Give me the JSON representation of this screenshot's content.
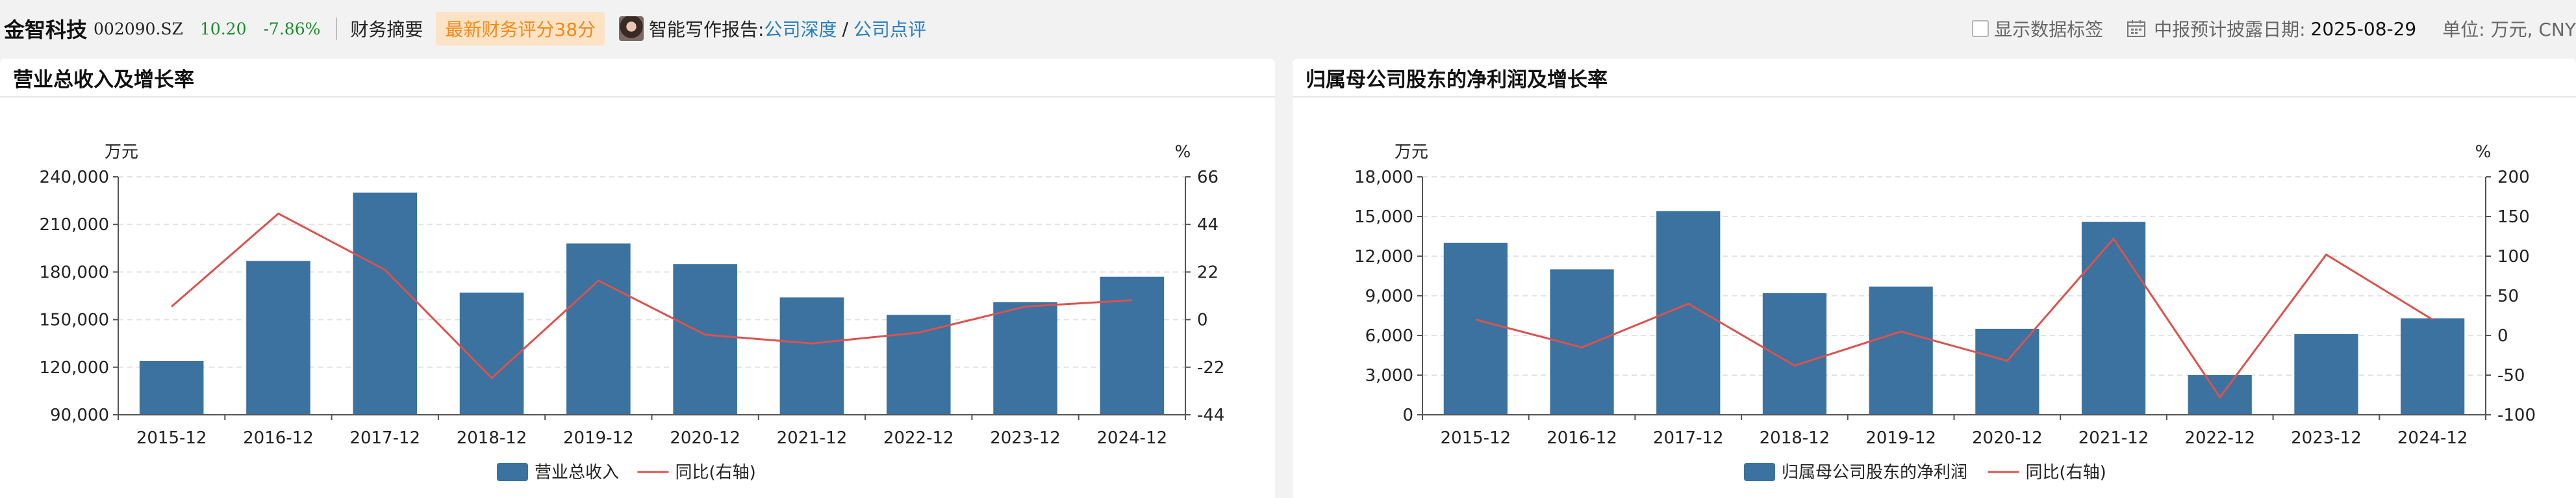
{
  "header": {
    "stock_name": "金智科技",
    "stock_code": "002090.SZ",
    "price": "10.20",
    "change": "-7.86%",
    "summary_tab": "财务摘要",
    "score_badge": "最新财务评分38分",
    "ai_report_label": "智能写作报告:",
    "link_deep": "公司深度",
    "link_separator": "/",
    "link_review": "公司点评",
    "show_labels": "显示数据标签",
    "disclosure_label": "中报预计披露日期:",
    "disclosure_date": "2025-08-29",
    "unit": "单位: 万元, CNY"
  },
  "colors": {
    "bar": "#3b729f",
    "line": "#d9534f",
    "price_down": "#1c8a2b",
    "link": "#2b7fbd"
  },
  "chart_data": [
    {
      "type": "bar",
      "title": "营业总收入及增长率",
      "categories": [
        "2015-12",
        "2016-12",
        "2017-12",
        "2018-12",
        "2019-12",
        "2020-12",
        "2021-12",
        "2022-12",
        "2023-12",
        "2024-12"
      ],
      "series": [
        {
          "name": "营业总收入",
          "type": "bar",
          "axis": "left",
          "values": [
            124000,
            187000,
            230000,
            167000,
            198000,
            185000,
            164000,
            153000,
            161000,
            177000
          ]
        },
        {
          "name": "同比(右轴)",
          "type": "line",
          "axis": "right",
          "values": [
            6,
            49,
            23,
            -27,
            18,
            -7,
            -11,
            -6,
            6,
            9
          ]
        }
      ],
      "y_left": {
        "unit": "万元",
        "min": 90000,
        "max": 240000,
        "ticks": [
          90000,
          120000,
          150000,
          180000,
          210000,
          240000
        ],
        "tick_labels": [
          "90,000",
          "120,000",
          "150,000",
          "180,000",
          "210,000",
          "240,000"
        ]
      },
      "y_right": {
        "unit": "%",
        "min": -44,
        "max": 66,
        "ticks": [
          -44,
          -22,
          0,
          22,
          44,
          66
        ],
        "tick_labels": [
          "-44",
          "-22",
          "0",
          "22",
          "44",
          "66"
        ]
      },
      "grid": true,
      "legend": "bottom"
    },
    {
      "type": "bar",
      "title": "归属母公司股东的净利润及增长率",
      "categories": [
        "2015-12",
        "2016-12",
        "2017-12",
        "2018-12",
        "2019-12",
        "2020-12",
        "2021-12",
        "2022-12",
        "2023-12",
        "2024-12"
      ],
      "series": [
        {
          "name": "归属母公司股东的净利润",
          "type": "bar",
          "axis": "left",
          "values": [
            13000,
            11000,
            15400,
            9200,
            9700,
            6500,
            14600,
            3000,
            6100,
            7300
          ]
        },
        {
          "name": "同比(右轴)",
          "type": "line",
          "axis": "right",
          "values": [
            20,
            -15,
            40,
            -38,
            5,
            -32,
            122,
            -78,
            102,
            20
          ]
        }
      ],
      "y_left": {
        "unit": "万元",
        "min": 0,
        "max": 18000,
        "ticks": [
          0,
          3000,
          6000,
          9000,
          12000,
          15000,
          18000
        ],
        "tick_labels": [
          "0",
          "3,000",
          "6,000",
          "9,000",
          "12,000",
          "15,000",
          "18,000"
        ]
      },
      "y_right": {
        "unit": "%",
        "min": -100,
        "max": 200,
        "ticks": [
          -100,
          -50,
          0,
          50,
          100,
          150,
          200
        ],
        "tick_labels": [
          "-100",
          "-50",
          "0",
          "50",
          "100",
          "150",
          "200"
        ]
      },
      "grid": true,
      "legend": "bottom"
    }
  ]
}
